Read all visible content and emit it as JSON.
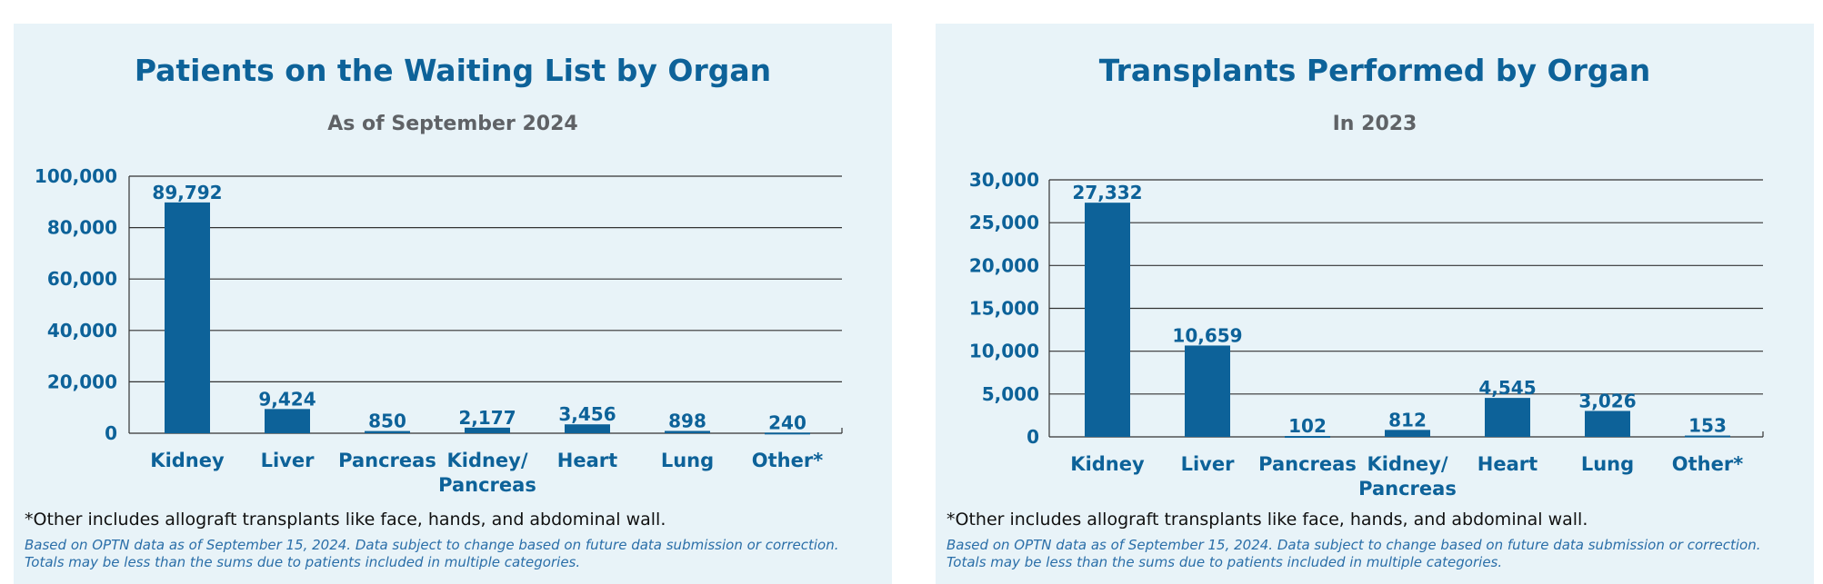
{
  "colors": {
    "bar": "#0d6299",
    "panel_bg": "#e8f3f8",
    "title": "#0d6299",
    "subtitle": "#5f6266",
    "gridline": "#333333"
  },
  "chart_data": [
    {
      "type": "bar",
      "title": "Patients on the Waiting List by Organ",
      "subtitle": "As of September 2024",
      "categories": [
        "Kidney",
        "Liver",
        "Pancreas",
        "Kidney/\nPancreas",
        "Heart",
        "Lung",
        "Other*"
      ],
      "values": [
        89792,
        9424,
        850,
        2177,
        3456,
        898,
        240
      ],
      "value_labels": [
        "89,792",
        "9,424",
        "850",
        "2,177",
        "3,456",
        "898",
        "240"
      ],
      "yticks": [
        0,
        20000,
        40000,
        60000,
        80000,
        100000
      ],
      "ytick_labels": [
        "0",
        "20,000",
        "40,000",
        "60,000",
        "80,000",
        "100,000"
      ],
      "ylim": [
        0,
        100000
      ],
      "grid": true,
      "footnote": "*Other includes allograft transplants like face, hands, and abdominal wall.",
      "source": "Based on OPTN data as of September 15, 2024. Data subject to change based on future data submission or correction. Totals may be less than the sums due to patients included in multiple categories."
    },
    {
      "type": "bar",
      "title": "Transplants Performed by Organ",
      "subtitle": "In 2023",
      "categories": [
        "Kidney",
        "Liver",
        "Pancreas",
        "Kidney/\nPancreas",
        "Heart",
        "Lung",
        "Other*"
      ],
      "values": [
        27332,
        10659,
        102,
        812,
        4545,
        3026,
        153
      ],
      "value_labels": [
        "27,332",
        "10,659",
        "102",
        "812",
        "4,545",
        "3,026",
        "153"
      ],
      "yticks": [
        0,
        5000,
        10000,
        15000,
        20000,
        25000,
        30000
      ],
      "ytick_labels": [
        "0",
        "5,000",
        "10,000",
        "15,000",
        "20,000",
        "25,000",
        "30,000"
      ],
      "ylim": [
        0,
        30000
      ],
      "grid": true,
      "footnote": "*Other includes allograft transplants like face, hands, and abdominal wall.",
      "source": "Based on OPTN data as of September 15, 2024. Data subject to change based on future data submission or correction. Totals may be less than the sums due to patients included in multiple categories."
    }
  ]
}
